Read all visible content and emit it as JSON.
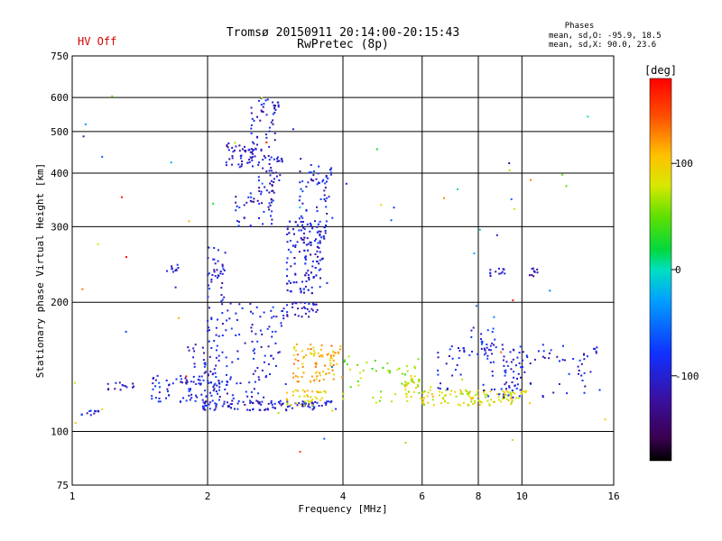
{
  "header": {
    "hv_status": "HV Off",
    "title_line1": "Tromsø 20150911 20:14:00-20:15:43",
    "title_line2": "RwPretec (8p)",
    "phases_title": "Phases",
    "phases_line1": "mean, sd,O: -95.9, 18.5",
    "phases_line2": "mean, sd,X: 90.0, 23.6"
  },
  "colorbar": {
    "label": "[deg]",
    "min": -180,
    "max": 180,
    "ticks": [
      100,
      0,
      -100
    ],
    "tick_labels": [
      "100",
      "0",
      "-100"
    ]
  },
  "chart_data": {
    "type": "scatter",
    "title": "Tromsø 20150911 20:14:00-20:15:43",
    "subtitle": "RwPretec (8p)",
    "xlabel": "Frequency [MHz]",
    "ylabel": "Stationary phase Virtual Height [km]",
    "xscale": "log",
    "yscale": "log",
    "xlim": [
      1,
      16
    ],
    "ylim": [
      75,
      750
    ],
    "xticks": [
      1,
      2,
      4,
      6,
      8,
      10,
      16
    ],
    "xtick_labels": [
      "1",
      "2",
      "4",
      "6",
      "8",
      "10",
      "16"
    ],
    "yticks": [
      75,
      100,
      200,
      300,
      400,
      500,
      600,
      750
    ],
    "ytick_labels": [
      "75",
      "100",
      "200",
      "300",
      "400",
      "500",
      "600",
      "750"
    ],
    "grid": true,
    "color_encoding": "phase in degrees",
    "clusters": [
      {
        "x": [
          1.95,
          3.9
        ],
        "y": [
          112,
          118
        ],
        "phase": -100,
        "count": 120
      },
      {
        "x": [
          1.5,
          2.3
        ],
        "y": [
          117,
          135
        ],
        "phase": -95,
        "count": 90
      },
      {
        "x": [
          1.05,
          1.15
        ],
        "y": [
          108,
          112
        ],
        "phase": -100,
        "count": 12
      },
      {
        "x": [
          1.2,
          1.4
        ],
        "y": [
          125,
          130
        ],
        "phase": -105,
        "count": 14
      },
      {
        "x": [
          1.8,
          2.2
        ],
        "y": [
          130,
          160
        ],
        "phase": -100,
        "count": 40
      },
      {
        "x": [
          2.0,
          2.2
        ],
        "y": [
          160,
          270
        ],
        "phase": -100,
        "count": 55
      },
      {
        "x": [
          2.2,
          3.0
        ],
        "y": [
          120,
          200
        ],
        "phase": -95,
        "count": 90
      },
      {
        "x": [
          2.3,
          2.9
        ],
        "y": [
          300,
          360
        ],
        "phase": -100,
        "count": 40
      },
      {
        "x": [
          2.6,
          2.95
        ],
        "y": [
          360,
          440
        ],
        "phase": -105,
        "count": 45
      },
      {
        "x": [
          2.2,
          2.6
        ],
        "y": [
          410,
          470
        ],
        "phase": -110,
        "count": 50
      },
      {
        "x": [
          2.5,
          2.9
        ],
        "y": [
          450,
          600
        ],
        "phase": -105,
        "count": 50
      },
      {
        "x": [
          3.0,
          3.7
        ],
        "y": [
          210,
          310
        ],
        "phase": -100,
        "count": 180
      },
      {
        "x": [
          3.2,
          3.8
        ],
        "y": [
          300,
          420
        ],
        "phase": -95,
        "count": 60
      },
      {
        "x": [
          3.0,
          3.6
        ],
        "y": [
          185,
          200
        ],
        "phase": -105,
        "count": 30
      },
      {
        "x": [
          3.1,
          4.0
        ],
        "y": [
          130,
          160
        ],
        "phase": 110,
        "count": 90
      },
      {
        "x": [
          3.0,
          3.7
        ],
        "y": [
          115,
          125
        ],
        "phase": 95,
        "count": 40
      },
      {
        "x": [
          1.6,
          1.75
        ],
        "y": [
          235,
          245
        ],
        "phase": -110,
        "count": 12
      },
      {
        "x": [
          4.0,
          6.0
        ],
        "y": [
          115,
          150
        ],
        "phase": 60,
        "count": 45
      },
      {
        "x": [
          5.5,
          6.0
        ],
        "y": [
          120,
          135
        ],
        "phase": 80,
        "count": 25
      },
      {
        "x": [
          6.0,
          10.5
        ],
        "y": [
          115,
          125
        ],
        "phase": 85,
        "count": 120
      },
      {
        "x": [
          6.5,
          7.5
        ],
        "y": [
          125,
          160
        ],
        "phase": -100,
        "count": 25
      },
      {
        "x": [
          8.2,
          10.5
        ],
        "y": [
          120,
          160
        ],
        "phase": -95,
        "count": 60
      },
      {
        "x": [
          9.5,
          15.0
        ],
        "y": [
          120,
          160
        ],
        "phase": -100,
        "count": 55
      },
      {
        "x": [
          8.5,
          9.3
        ],
        "y": [
          230,
          240
        ],
        "phase": -105,
        "count": 12
      },
      {
        "x": [
          10.4,
          10.9
        ],
        "y": [
          230,
          240
        ],
        "phase": -110,
        "count": 10
      },
      {
        "x": [
          7.5,
          9.0
        ],
        "y": [
          150,
          175
        ],
        "phase": -90,
        "count": 25
      },
      {
        "x": [
          1.0,
          16.0
        ],
        "y": [
          80,
          620
        ],
        "phase": 0,
        "count": 60
      }
    ]
  }
}
